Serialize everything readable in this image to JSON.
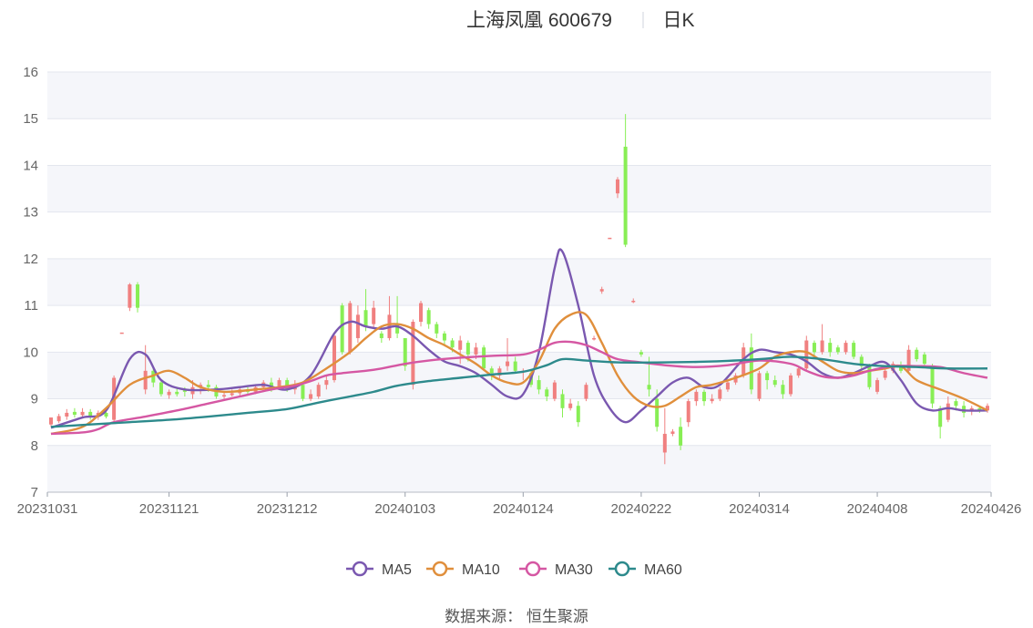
{
  "title": {
    "name": "上海凤凰 600679",
    "period": "日K"
  },
  "source": "数据来源： 恒生聚源",
  "colors": {
    "up": "#f08080",
    "down": "#88ee55",
    "grid": "#e3e6ee",
    "band": "#f5f6fa"
  },
  "chart_data": {
    "type": "candlestick",
    "ylim": [
      7,
      16
    ],
    "yticks": [
      7,
      8,
      9,
      10,
      11,
      12,
      13,
      14,
      15,
      16
    ],
    "xticks": [
      "20231031",
      "20231121",
      "20231212",
      "20240103",
      "20240124",
      "20240222",
      "20240314",
      "20240408",
      "20240426"
    ],
    "xtick_index": [
      0,
      15,
      30,
      45,
      60,
      75,
      90,
      105,
      119
    ],
    "candles": [
      [
        8.45,
        8.6,
        8.6,
        8.4
      ],
      [
        8.52,
        8.63,
        8.68,
        8.48
      ],
      [
        8.62,
        8.7,
        8.78,
        8.55
      ],
      [
        8.72,
        8.66,
        8.8,
        8.6
      ],
      [
        8.65,
        8.72,
        8.8,
        8.6
      ],
      [
        8.72,
        8.62,
        8.78,
        8.55
      ],
      [
        8.62,
        8.7,
        8.75,
        8.55
      ],
      [
        8.7,
        8.62,
        8.78,
        8.58
      ],
      [
        8.55,
        9.45,
        9.5,
        8.5
      ],
      [
        10.42,
        10.42,
        10.42,
        10.42
      ],
      [
        10.95,
        11.45,
        11.48,
        10.88
      ],
      [
        11.45,
        10.95,
        11.5,
        10.85
      ],
      [
        9.2,
        9.6,
        10.15,
        9.1
      ],
      [
        9.6,
        9.35,
        9.7,
        9.25
      ],
      [
        9.35,
        9.1,
        9.4,
        9.05
      ],
      [
        9.08,
        9.15,
        9.2,
        9.0
      ],
      [
        9.15,
        9.1,
        9.25,
        9.05
      ],
      [
        9.2,
        9.15,
        9.25,
        9.05
      ],
      [
        9.1,
        9.25,
        9.4,
        9.0
      ],
      [
        9.25,
        9.3,
        9.35,
        9.1
      ],
      [
        9.3,
        9.25,
        9.4,
        9.15
      ],
      [
        9.25,
        9.05,
        9.3,
        9.0
      ],
      [
        9.05,
        9.08,
        9.15,
        9.0
      ],
      [
        9.08,
        9.12,
        9.2,
        9.05
      ],
      [
        9.12,
        9.2,
        9.25,
        9.05
      ],
      [
        9.2,
        9.15,
        9.25,
        9.1
      ],
      [
        9.15,
        9.25,
        9.3,
        9.1
      ],
      [
        9.25,
        9.35,
        9.4,
        9.2
      ],
      [
        9.35,
        9.25,
        9.45,
        9.15
      ],
      [
        9.25,
        9.4,
        9.45,
        9.2
      ],
      [
        9.4,
        9.2,
        9.45,
        9.15
      ],
      [
        9.2,
        9.3,
        9.4,
        9.1
      ],
      [
        9.3,
        9.0,
        9.35,
        8.95
      ],
      [
        9.0,
        9.1,
        9.2,
        8.95
      ],
      [
        9.05,
        9.3,
        9.35,
        9.0
      ],
      [
        9.3,
        9.4,
        9.5,
        9.2
      ],
      [
        9.4,
        10.35,
        10.4,
        9.35
      ],
      [
        11.0,
        10.0,
        11.05,
        9.95
      ],
      [
        10.0,
        11.05,
        11.1,
        9.95
      ],
      [
        10.3,
        10.8,
        11.0,
        10.2
      ],
      [
        10.9,
        10.55,
        11.35,
        10.45
      ],
      [
        10.6,
        10.95,
        11.1,
        10.5
      ],
      [
        10.4,
        10.3,
        10.45,
        10.2
      ],
      [
        10.3,
        10.8,
        11.2,
        10.25
      ],
      [
        10.6,
        10.4,
        11.2,
        10.3
      ],
      [
        10.3,
        9.7,
        10.3,
        9.6
      ],
      [
        9.3,
        10.65,
        10.7,
        9.2
      ],
      [
        10.65,
        11.05,
        11.1,
        10.55
      ],
      [
        10.9,
        10.6,
        10.95,
        10.5
      ],
      [
        10.6,
        10.4,
        10.65,
        10.3
      ],
      [
        10.4,
        10.25,
        10.45,
        10.15
      ],
      [
        10.25,
        10.1,
        10.3,
        10.0
      ],
      [
        10.05,
        10.25,
        10.35,
        9.75
      ],
      [
        10.2,
        9.95,
        10.25,
        9.8
      ],
      [
        9.95,
        10.1,
        10.2,
        9.85
      ],
      [
        10.1,
        9.65,
        10.15,
        9.6
      ],
      [
        9.65,
        9.55,
        9.7,
        9.4
      ],
      [
        9.5,
        9.65,
        9.7,
        9.4
      ],
      [
        9.7,
        9.8,
        10.3,
        9.6
      ],
      [
        9.8,
        9.6,
        9.9,
        9.55
      ],
      [
        9.6,
        9.6,
        9.65,
        9.4
      ],
      [
        9.55,
        9.3,
        9.6,
        9.25
      ],
      [
        9.4,
        9.2,
        9.5,
        9.1
      ],
      [
        9.2,
        9.05,
        9.25,
        8.95
      ],
      [
        9.0,
        9.35,
        9.4,
        8.95
      ],
      [
        9.1,
        8.8,
        9.2,
        8.6
      ],
      [
        8.8,
        8.9,
        9.0,
        8.75
      ],
      [
        8.85,
        8.5,
        8.95,
        8.4
      ],
      [
        9.0,
        9.3,
        9.35,
        8.95
      ],
      [
        10.28,
        10.3,
        10.35,
        10.25
      ],
      [
        11.3,
        11.35,
        11.4,
        11.25
      ],
      [
        12.45,
        12.45,
        12.45,
        12.45
      ],
      [
        13.4,
        13.7,
        13.75,
        13.3
      ],
      [
        14.4,
        12.3,
        15.1,
        12.25
      ],
      [
        11.1,
        11.1,
        11.15,
        11.05
      ],
      [
        10.0,
        9.95,
        10.05,
        9.9
      ],
      [
        9.3,
        9.2,
        9.9,
        9.05
      ],
      [
        9.0,
        8.4,
        9.2,
        8.3
      ],
      [
        7.85,
        8.25,
        8.8,
        7.6
      ],
      [
        8.25,
        8.3,
        8.35,
        8.2
      ],
      [
        8.4,
        8.0,
        8.6,
        7.9
      ],
      [
        8.5,
        8.95,
        9.0,
        8.4
      ],
      [
        8.95,
        9.15,
        9.2,
        8.85
      ],
      [
        9.15,
        8.95,
        9.2,
        8.85
      ],
      [
        8.95,
        9.0,
        9.1,
        8.9
      ],
      [
        9.0,
        9.2,
        9.25,
        8.95
      ],
      [
        9.2,
        9.35,
        9.4,
        9.15
      ],
      [
        9.35,
        9.5,
        9.55,
        9.3
      ],
      [
        9.5,
        10.1,
        10.2,
        9.45
      ],
      [
        10.1,
        9.2,
        10.4,
        9.1
      ],
      [
        9.0,
        9.55,
        9.6,
        8.95
      ],
      [
        9.55,
        9.4,
        9.6,
        9.2
      ],
      [
        9.4,
        9.3,
        9.5,
        9.25
      ],
      [
        9.3,
        9.1,
        9.4,
        9.0
      ],
      [
        9.1,
        9.5,
        9.55,
        9.05
      ],
      [
        9.5,
        9.65,
        9.7,
        9.45
      ],
      [
        9.65,
        10.25,
        10.35,
        9.6
      ],
      [
        10.2,
        10.0,
        10.25,
        9.9
      ],
      [
        10.0,
        10.25,
        10.6,
        9.95
      ],
      [
        10.2,
        10.0,
        10.3,
        9.9
      ],
      [
        10.1,
        10.0,
        10.15,
        9.95
      ],
      [
        10.0,
        10.2,
        10.25,
        9.95
      ],
      [
        10.2,
        9.9,
        10.25,
        9.85
      ],
      [
        9.9,
        9.7,
        9.95,
        9.6
      ],
      [
        9.7,
        9.25,
        9.75,
        9.2
      ],
      [
        9.15,
        9.4,
        9.45,
        9.1
      ],
      [
        9.45,
        9.6,
        9.65,
        9.4
      ],
      [
        9.6,
        9.75,
        9.8,
        9.55
      ],
      [
        9.7,
        9.6,
        9.8,
        9.55
      ],
      [
        9.6,
        10.05,
        10.15,
        9.55
      ],
      [
        10.05,
        9.85,
        10.1,
        9.8
      ],
      [
        9.95,
        9.75,
        10.0,
        9.7
      ],
      [
        9.7,
        8.9,
        9.75,
        8.8
      ],
      [
        8.8,
        8.4,
        8.85,
        8.15
      ],
      [
        8.55,
        8.9,
        9.05,
        8.5
      ],
      [
        8.95,
        8.85,
        9.0,
        8.75
      ],
      [
        8.85,
        8.7,
        8.95,
        8.6
      ],
      [
        8.75,
        8.8,
        8.85,
        8.65
      ],
      [
        8.8,
        8.75,
        8.85,
        8.7
      ],
      [
        8.75,
        8.85,
        8.9,
        8.7
      ]
    ],
    "series": [
      {
        "name": "MA5",
        "color": "#7a58b0",
        "points": [
          [
            0,
            8.38
          ],
          [
            4,
            8.6
          ],
          [
            7,
            8.75
          ],
          [
            10,
            9.85
          ],
          [
            12,
            9.95
          ],
          [
            14,
            9.4
          ],
          [
            17,
            9.2
          ],
          [
            21,
            9.2
          ],
          [
            24,
            9.25
          ],
          [
            27,
            9.3
          ],
          [
            30,
            9.2
          ],
          [
            33,
            9.5
          ],
          [
            36,
            10.4
          ],
          [
            38,
            10.65
          ],
          [
            40,
            10.55
          ],
          [
            42,
            10.5
          ],
          [
            44,
            10.55
          ],
          [
            46,
            10.35
          ],
          [
            48,
            10.05
          ],
          [
            50,
            9.8
          ],
          [
            52,
            9.7
          ],
          [
            54,
            9.55
          ],
          [
            56,
            9.3
          ],
          [
            58,
            9.05
          ],
          [
            60,
            9.1
          ],
          [
            62,
            10.0
          ],
          [
            64,
            11.8
          ],
          [
            65,
            12.15
          ],
          [
            67,
            11.0
          ],
          [
            69,
            9.5
          ],
          [
            71,
            8.8
          ],
          [
            73,
            8.5
          ],
          [
            75,
            8.75
          ],
          [
            77,
            9.05
          ],
          [
            79,
            9.35
          ],
          [
            81,
            9.45
          ],
          [
            83,
            9.25
          ],
          [
            85,
            9.3
          ],
          [
            88,
            9.85
          ],
          [
            90,
            10.05
          ],
          [
            92,
            10.0
          ],
          [
            94,
            9.95
          ],
          [
            96,
            9.8
          ],
          [
            98,
            9.55
          ],
          [
            100,
            9.45
          ],
          [
            102,
            9.55
          ],
          [
            104,
            9.7
          ],
          [
            106,
            9.78
          ],
          [
            108,
            9.4
          ],
          [
            110,
            8.9
          ],
          [
            112,
            8.75
          ],
          [
            114,
            8.8
          ],
          [
            116,
            8.75
          ],
          [
            119,
            8.75
          ]
        ]
      },
      {
        "name": "MA10",
        "color": "#e08f3c",
        "points": [
          [
            0,
            8.25
          ],
          [
            4,
            8.4
          ],
          [
            7,
            8.8
          ],
          [
            10,
            9.3
          ],
          [
            13,
            9.5
          ],
          [
            15,
            9.6
          ],
          [
            17,
            9.45
          ],
          [
            19,
            9.25
          ],
          [
            22,
            9.15
          ],
          [
            26,
            9.2
          ],
          [
            29,
            9.25
          ],
          [
            32,
            9.35
          ],
          [
            35,
            9.65
          ],
          [
            38,
            10.0
          ],
          [
            40,
            10.3
          ],
          [
            42,
            10.55
          ],
          [
            44,
            10.6
          ],
          [
            46,
            10.5
          ],
          [
            48,
            10.3
          ],
          [
            50,
            10.15
          ],
          [
            52,
            9.95
          ],
          [
            54,
            9.75
          ],
          [
            56,
            9.5
          ],
          [
            58,
            9.35
          ],
          [
            60,
            9.35
          ],
          [
            62,
            9.8
          ],
          [
            64,
            10.5
          ],
          [
            66,
            10.8
          ],
          [
            68,
            10.8
          ],
          [
            70,
            10.2
          ],
          [
            72,
            9.5
          ],
          [
            74,
            9.05
          ],
          [
            76,
            8.85
          ],
          [
            78,
            8.85
          ],
          [
            80,
            9.05
          ],
          [
            82,
            9.25
          ],
          [
            84,
            9.3
          ],
          [
            87,
            9.45
          ],
          [
            90,
            9.65
          ],
          [
            92,
            9.9
          ],
          [
            94,
            10.0
          ],
          [
            96,
            10.0
          ],
          [
            98,
            9.8
          ],
          [
            100,
            9.6
          ],
          [
            102,
            9.55
          ],
          [
            104,
            9.6
          ],
          [
            106,
            9.65
          ],
          [
            108,
            9.7
          ],
          [
            110,
            9.4
          ],
          [
            113,
            9.2
          ],
          [
            116,
            9.0
          ],
          [
            119,
            8.75
          ]
        ]
      },
      {
        "name": "MA30",
        "color": "#d557a3",
        "points": [
          [
            0,
            8.25
          ],
          [
            4,
            8.28
          ],
          [
            6,
            8.35
          ],
          [
            8,
            8.5
          ],
          [
            12,
            8.62
          ],
          [
            16,
            8.75
          ],
          [
            20,
            8.9
          ],
          [
            24,
            9.05
          ],
          [
            28,
            9.2
          ],
          [
            31,
            9.28
          ],
          [
            33,
            9.38
          ],
          [
            35,
            9.5
          ],
          [
            37,
            9.55
          ],
          [
            40,
            9.6
          ],
          [
            42,
            9.65
          ],
          [
            45,
            9.75
          ],
          [
            48,
            9.82
          ],
          [
            52,
            9.88
          ],
          [
            56,
            9.92
          ],
          [
            60,
            9.95
          ],
          [
            62,
            10.05
          ],
          [
            64,
            10.2
          ],
          [
            66,
            10.22
          ],
          [
            68,
            10.15
          ],
          [
            70,
            10.0
          ],
          [
            72,
            9.85
          ],
          [
            75,
            9.78
          ],
          [
            78,
            9.72
          ],
          [
            82,
            9.68
          ],
          [
            86,
            9.72
          ],
          [
            90,
            9.82
          ],
          [
            94,
            9.75
          ],
          [
            96,
            9.6
          ],
          [
            98,
            9.48
          ],
          [
            100,
            9.45
          ],
          [
            102,
            9.5
          ],
          [
            104,
            9.6
          ],
          [
            107,
            9.7
          ],
          [
            110,
            9.7
          ],
          [
            113,
            9.68
          ],
          [
            116,
            9.55
          ],
          [
            119,
            9.45
          ]
        ]
      },
      {
        "name": "MA60",
        "color": "#2d8a8c",
        "points": [
          [
            0,
            8.4
          ],
          [
            5,
            8.45
          ],
          [
            10,
            8.5
          ],
          [
            15,
            8.55
          ],
          [
            20,
            8.62
          ],
          [
            25,
            8.7
          ],
          [
            30,
            8.78
          ],
          [
            34,
            8.92
          ],
          [
            38,
            9.05
          ],
          [
            41,
            9.15
          ],
          [
            44,
            9.28
          ],
          [
            48,
            9.38
          ],
          [
            52,
            9.45
          ],
          [
            56,
            9.52
          ],
          [
            60,
            9.58
          ],
          [
            63,
            9.72
          ],
          [
            65,
            9.85
          ],
          [
            68,
            9.82
          ],
          [
            72,
            9.78
          ],
          [
            78,
            9.78
          ],
          [
            84,
            9.8
          ],
          [
            90,
            9.85
          ],
          [
            94,
            9.9
          ],
          [
            98,
            9.85
          ],
          [
            102,
            9.75
          ],
          [
            106,
            9.7
          ],
          [
            110,
            9.68
          ],
          [
            114,
            9.65
          ],
          [
            119,
            9.65
          ]
        ]
      }
    ]
  }
}
